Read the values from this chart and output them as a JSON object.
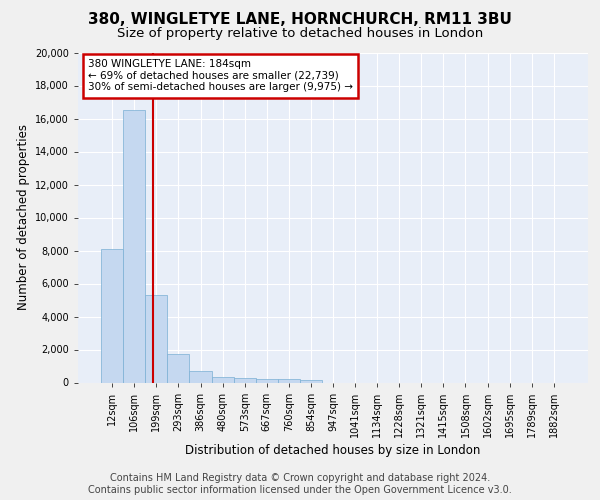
{
  "title": "380, WINGLETYE LANE, HORNCHURCH, RM11 3BU",
  "subtitle": "Size of property relative to detached houses in London",
  "xlabel": "Distribution of detached houses by size in London",
  "ylabel": "Number of detached properties",
  "bar_color": "#c5d8f0",
  "bar_edge_color": "#7aafd4",
  "bar_categories": [
    "12sqm",
    "106sqm",
    "199sqm",
    "293sqm",
    "386sqm",
    "480sqm",
    "573sqm",
    "667sqm",
    "760sqm",
    "854sqm",
    "947sqm",
    "1041sqm",
    "1134sqm",
    "1228sqm",
    "1321sqm",
    "1415sqm",
    "1508sqm",
    "1602sqm",
    "1695sqm",
    "1789sqm",
    "1882sqm"
  ],
  "bar_values": [
    8100,
    16500,
    5300,
    1750,
    700,
    350,
    270,
    220,
    190,
    160,
    0,
    0,
    0,
    0,
    0,
    0,
    0,
    0,
    0,
    0,
    0
  ],
  "ylim": [
    0,
    20000
  ],
  "yticks": [
    0,
    2000,
    4000,
    6000,
    8000,
    10000,
    12000,
    14000,
    16000,
    18000,
    20000
  ],
  "annotation_text": "380 WINGLETYE LANE: 184sqm\n← 69% of detached houses are smaller (22,739)\n30% of semi-detached houses are larger (9,975) →",
  "vline_x_index": 1.85,
  "annotation_box_color": "#ffffff",
  "annotation_box_edge": "#cc0000",
  "vline_color": "#cc0000",
  "footer_line1": "Contains HM Land Registry data © Crown copyright and database right 2024.",
  "footer_line2": "Contains public sector information licensed under the Open Government Licence v3.0.",
  "background_color": "#e8eef8",
  "grid_color": "#ffffff",
  "title_fontsize": 11,
  "subtitle_fontsize": 9.5,
  "axis_label_fontsize": 8.5,
  "tick_fontsize": 7,
  "annotation_fontsize": 7.5,
  "footer_fontsize": 7
}
